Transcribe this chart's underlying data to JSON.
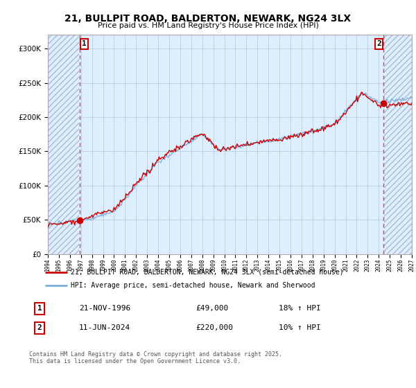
{
  "title": "21, BULLPIT ROAD, BALDERTON, NEWARK, NG24 3LX",
  "subtitle": "Price paid vs. HM Land Registry's House Price Index (HPI)",
  "ylim": [
    0,
    320000
  ],
  "yticks": [
    0,
    50000,
    100000,
    150000,
    200000,
    250000,
    300000
  ],
  "ytick_labels": [
    "£0",
    "£50K",
    "£100K",
    "£150K",
    "£200K",
    "£250K",
    "£300K"
  ],
  "xstart_year": 1994,
  "xend_year": 2027,
  "sale1_date": 1996.9,
  "sale1_price": 49000,
  "sale2_date": 2024.44,
  "sale2_price": 220000,
  "line_color_price": "#cc0000",
  "line_color_hpi": "#7aaddb",
  "hatch_color": "#cccccc",
  "dashed_line_color": "#dd4444",
  "plot_bg_color": "#ddeeff",
  "legend_label1": "21, BULLPIT ROAD, BALDERTON, NEWARK, NG24 3LX (semi-detached house)",
  "legend_label2": "HPI: Average price, semi-detached house, Newark and Sherwood",
  "annotation1_date": "21-NOV-1996",
  "annotation1_price": "£49,000",
  "annotation1_hpi": "18% ↑ HPI",
  "annotation2_date": "11-JUN-2024",
  "annotation2_price": "£220,000",
  "annotation2_hpi": "10% ↑ HPI",
  "footer": "Contains HM Land Registry data © Crown copyright and database right 2025.\nThis data is licensed under the Open Government Licence v3.0.",
  "bg_color": "#ffffff",
  "grid_color": "#bbccdd"
}
